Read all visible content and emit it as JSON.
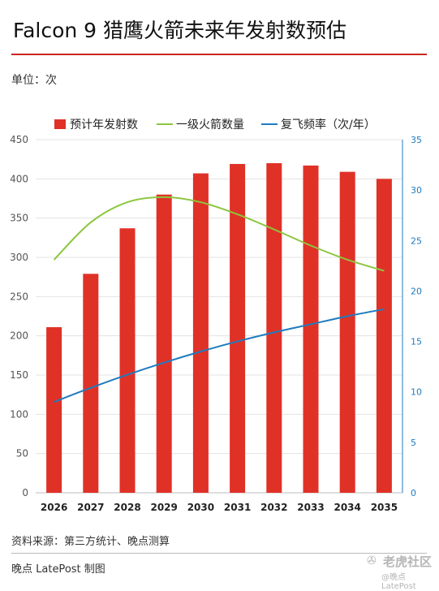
{
  "title": "Falcon 9 猎鹰火箭未来年发射数预估",
  "unit_label": "单位：次",
  "source": "资料来源：第三方统计、晚点测算",
  "credit": "晚点 LatePost 制图",
  "watermark": {
    "main": "老虎社区",
    "sub": "@晚点LatePost"
  },
  "colors": {
    "bar": "#e03127",
    "green": "#8cc63f",
    "blue": "#1f7bbf",
    "accent_rule": "#c8281e"
  },
  "chart_data": {
    "type": "bar",
    "categories": [
      "2026",
      "2027",
      "2028",
      "2029",
      "2030",
      "2031",
      "2032",
      "2033",
      "2034",
      "2035"
    ],
    "legend": [
      "预计年发射数",
      "一级火箭数量",
      "复飞频率（次/年）"
    ],
    "series": [
      {
        "name": "预计年发射数",
        "type": "bar",
        "axis": "left",
        "values": [
          211,
          279,
          337,
          380,
          407,
          419,
          420,
          417,
          409,
          400
        ]
      },
      {
        "name": "一级火箭数量",
        "type": "line",
        "axis": "right",
        "values": [
          23.1,
          26.8,
          28.8,
          29.3,
          28.8,
          27.6,
          26.1,
          24.5,
          23.1,
          22.0
        ]
      },
      {
        "name": "复飞频率（次/年）",
        "type": "line",
        "axis": "right",
        "values": [
          9.0,
          10.4,
          11.7,
          12.9,
          14.0,
          15.0,
          15.9,
          16.7,
          17.5,
          18.2
        ]
      }
    ],
    "y_left": {
      "min": 0,
      "max": 450,
      "ticks": [
        "0",
        "50",
        "100",
        "150",
        "200",
        "250",
        "300",
        "350",
        "400",
        "450"
      ]
    },
    "y_right": {
      "min": 0,
      "max": 35,
      "ticks": [
        "0",
        "5",
        "10",
        "15",
        "20",
        "25",
        "30",
        "35"
      ]
    },
    "grid": true,
    "legend_position": "top"
  }
}
